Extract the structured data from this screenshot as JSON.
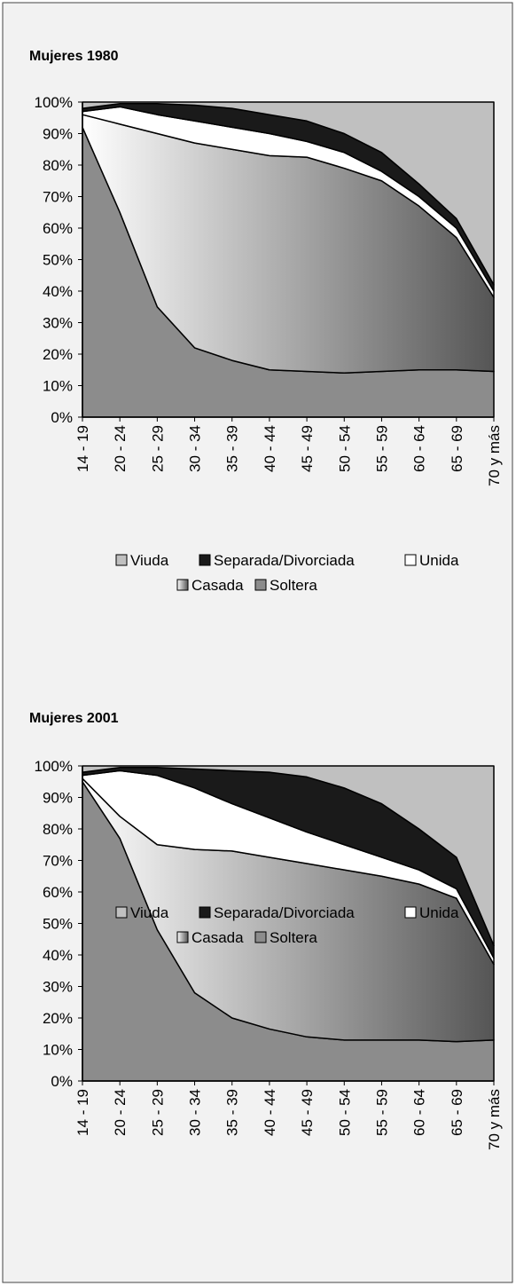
{
  "chart_data": [
    {
      "type": "stacked_area",
      "title": "Mujeres 1980",
      "categories": [
        "14 - 19",
        "20 - 24",
        "25 - 29",
        "30 - 34",
        "35 - 39",
        "40 - 44",
        "45 - 49",
        "50 - 54",
        "55 - 59",
        "60 - 64",
        "65 - 69",
        "70 y más"
      ],
      "ylim": [
        0,
        100
      ],
      "yticks": [
        {
          "value": 0,
          "label": "0%"
        },
        {
          "value": 10,
          "label": "10%"
        },
        {
          "value": 20,
          "label": "20%"
        },
        {
          "value": 30,
          "label": "30%"
        },
        {
          "value": 40,
          "label": "40%"
        },
        {
          "value": 50,
          "label": "50%"
        },
        {
          "value": 60,
          "label": "60%"
        },
        {
          "value": 70,
          "label": "70%"
        },
        {
          "value": 80,
          "label": "80%"
        },
        {
          "value": 90,
          "label": "90%"
        },
        {
          "value": 100,
          "label": "100%"
        }
      ],
      "series": [
        {
          "name": "Viuda",
          "color": "#c0c0c0",
          "values": [
            2,
            0.5,
            0.5,
            1,
            2,
            4,
            6,
            10,
            16,
            26,
            37,
            58
          ]
        },
        {
          "name": "Separada/Divorciada",
          "color": "#1a1a1a",
          "values": [
            1,
            1,
            3.5,
            5,
            6,
            6,
            6.5,
            6,
            6,
            4,
            3,
            2
          ]
        },
        {
          "name": "Unida",
          "color": "#ffffff",
          "values": [
            1,
            5.5,
            6,
            7,
            7,
            7,
            5,
            5,
            3,
            3,
            3,
            2
          ]
        },
        {
          "name": "Casada",
          "color": "#555555",
          "values": [
            4,
            28,
            55,
            65,
            67,
            68,
            68,
            65,
            60.5,
            52,
            42,
            23.5
          ]
        },
        {
          "name": "Soltera",
          "color": "#8c8c8c",
          "values": [
            92,
            65,
            35,
            22,
            18,
            15,
            14.5,
            14,
            14.5,
            15,
            15,
            14.5
          ]
        }
      ]
    },
    {
      "type": "stacked_area",
      "title": "Mujeres 2001",
      "categories": [
        "14 - 19",
        "20 - 24",
        "25 - 29",
        "30 - 34",
        "35 - 39",
        "40 - 44",
        "45 - 49",
        "50 - 54",
        "55 - 59",
        "60 - 64",
        "65 - 69",
        "70 y más"
      ],
      "ylim": [
        0,
        100
      ],
      "yticks": [
        {
          "value": 0,
          "label": "0%"
        },
        {
          "value": 10,
          "label": "10%"
        },
        {
          "value": 20,
          "label": "20%"
        },
        {
          "value": 30,
          "label": "30%"
        },
        {
          "value": 40,
          "label": "40%"
        },
        {
          "value": 50,
          "label": "50%"
        },
        {
          "value": 60,
          "label": "60%"
        },
        {
          "value": 70,
          "label": "70%"
        },
        {
          "value": 80,
          "label": "80%"
        },
        {
          "value": 90,
          "label": "90%"
        },
        {
          "value": 100,
          "label": "100%"
        }
      ],
      "series": [
        {
          "name": "Viuda",
          "color": "#c0c0c0",
          "values": [
            2,
            0.5,
            0.5,
            1,
            1.5,
            2,
            3.5,
            7,
            12,
            20,
            29,
            57
          ]
        },
        {
          "name": "Separada/Divorciada",
          "color": "#1a1a1a",
          "values": [
            1,
            1,
            2.5,
            6,
            10.5,
            14.5,
            17.5,
            18,
            17,
            13,
            10,
            4
          ]
        },
        {
          "name": "Unida",
          "color": "#ffffff",
          "values": [
            1,
            14.5,
            22,
            19.5,
            15,
            12.5,
            10,
            8,
            6,
            4.5,
            3,
            2
          ]
        },
        {
          "name": "Casada",
          "color": "#555555",
          "values": [
            1,
            7,
            27,
            45.5,
            53,
            54.5,
            55,
            54,
            52,
            49.5,
            45.5,
            24
          ]
        },
        {
          "name": "Soltera",
          "color": "#8c8c8c",
          "values": [
            95,
            77,
            48,
            28,
            20,
            16.5,
            14,
            13,
            13,
            13,
            12.5,
            13
          ]
        }
      ]
    }
  ]
}
